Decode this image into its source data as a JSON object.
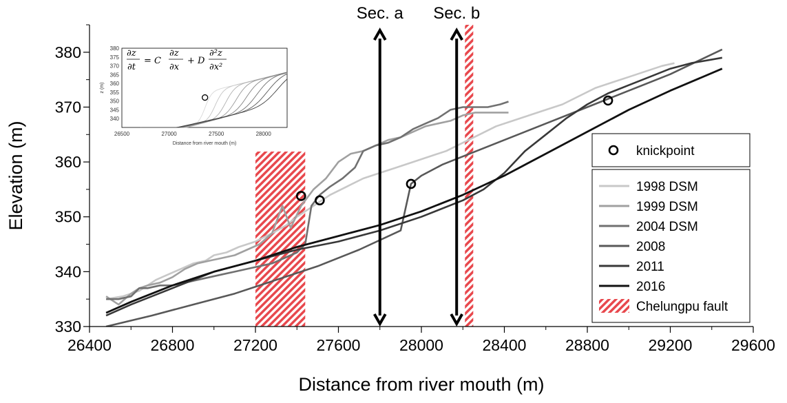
{
  "chart_data": {
    "type": "line",
    "xlabel": "Distance from river mouth (m)",
    "ylabel": "Elevation (m)",
    "xlim": [
      26400,
      29600
    ],
    "ylim": [
      330,
      385
    ],
    "x_ticks": [
      26400,
      26800,
      27200,
      27600,
      28000,
      28400,
      28800,
      29200,
      29600
    ],
    "x_tick_labels": [
      "26400",
      "26800",
      "27200",
      "27600",
      "28000",
      "28400",
      "28800",
      "29200",
      "29600"
    ],
    "y_ticks": [
      330,
      340,
      350,
      360,
      370,
      380
    ],
    "y_tick_labels": [
      "330",
      "340",
      "350",
      "360",
      "370",
      "380"
    ],
    "series": [
      {
        "name": "1998 DSM",
        "color": "#c8c8c8",
        "x": [
          26480,
          26560,
          26600,
          26640,
          26680,
          26720,
          26780,
          26840,
          26900,
          26960,
          27000,
          27060,
          27120,
          27200,
          27280,
          27350,
          27400,
          27480,
          27560,
          27640,
          27720,
          27800,
          27880,
          27960,
          28040,
          28120,
          28200,
          28280,
          28360,
          28440,
          28520,
          28600,
          28680,
          28760,
          28840,
          28920,
          29000,
          29080,
          29160,
          29220
        ],
        "y": [
          335,
          335.5,
          336,
          336.5,
          337.5,
          338.5,
          339.5,
          340.5,
          341.5,
          342,
          343,
          343.5,
          344.5,
          345.5,
          347,
          348.5,
          350,
          352,
          354,
          355.5,
          357,
          358,
          359,
          360,
          361,
          362,
          363.5,
          365,
          366.5,
          367.5,
          368.5,
          369.5,
          370.5,
          372,
          373.5,
          374.5,
          375.5,
          376.5,
          377.5,
          378
        ]
      },
      {
        "name": "1999 DSM",
        "color": "#a0a0a0",
        "x": [
          26480,
          26540,
          26600,
          26640,
          26680,
          26740,
          26800,
          26860,
          26920,
          26980,
          27040,
          27100,
          27160,
          27220,
          27280,
          27330,
          27370,
          27420,
          27480,
          27540,
          27600,
          27660,
          27720,
          27780,
          27840,
          27900,
          27960,
          28020,
          28080,
          28140,
          28200,
          28260,
          28320,
          28360,
          28420
        ],
        "y": [
          335.5,
          334,
          336,
          337,
          337.5,
          338,
          339,
          340.5,
          341.5,
          342,
          342.5,
          343,
          344,
          345,
          347,
          352,
          348,
          352,
          355,
          357,
          360,
          361.5,
          362,
          363,
          364,
          364.5,
          365.5,
          366.5,
          367,
          367.5,
          368.5,
          369,
          369,
          369,
          369
        ]
      },
      {
        "name": "2004 DSM",
        "color": "#707070",
        "x": [
          26480,
          26540,
          26600,
          26640,
          26680,
          26740,
          26800,
          26860,
          26920,
          26980,
          27040,
          27100,
          27160,
          27220,
          27280,
          27340,
          27400,
          27440,
          27470,
          27510,
          27560,
          27620,
          27680,
          27720,
          27780,
          27840,
          27900,
          27960,
          28020,
          28080,
          28140,
          28200,
          28260,
          28320,
          28380,
          28420
        ],
        "y": [
          335,
          335,
          335.5,
          337,
          337,
          337.5,
          337.5,
          338,
          338.5,
          339,
          339.5,
          340,
          340.5,
          341,
          341.5,
          342.5,
          343.5,
          345,
          352,
          354,
          355.5,
          357,
          359,
          362,
          363,
          363.5,
          364.5,
          366,
          367,
          368,
          369.5,
          370,
          370,
          370,
          370.5,
          371
        ]
      },
      {
        "name": "2008",
        "color": "#585858",
        "x": [
          26480,
          26700,
          26900,
          27100,
          27300,
          27500,
          27700,
          27900,
          27950,
          28000,
          28100,
          28200,
          28400,
          28600,
          28800,
          29000,
          29200,
          29450
        ],
        "y": [
          330,
          332,
          334,
          336,
          338.5,
          341,
          344,
          347.5,
          356,
          357.5,
          359.5,
          361,
          364,
          367,
          370,
          373,
          376,
          380.5
        ]
      },
      {
        "name": "2011",
        "color": "#383838",
        "x": [
          26480,
          26600,
          26800,
          27000,
          27200,
          27400,
          27600,
          27800,
          28000,
          28200,
          28300,
          28400,
          28500,
          28600,
          28700,
          28800,
          28900,
          29000,
          29100,
          29200,
          29300,
          29450
        ],
        "y": [
          332,
          334,
          337,
          340,
          342,
          344,
          345.5,
          347.5,
          350,
          353,
          355,
          358,
          362,
          365,
          368,
          370.5,
          372.5,
          374,
          375.5,
          377,
          378,
          379
        ]
      },
      {
        "name": "2016",
        "color": "#111111",
        "x": [
          26480,
          26600,
          26800,
          27000,
          27200,
          27400,
          27600,
          27800,
          28000,
          28200,
          28400,
          28600,
          28800,
          29000,
          29200,
          29450
        ],
        "y": [
          332.5,
          334.5,
          337.5,
          340,
          342,
          344.5,
          346.5,
          348.5,
          351,
          354,
          357.5,
          361.5,
          365.5,
          369.5,
          373,
          377
        ]
      }
    ],
    "knickpoints": [
      {
        "x": 27420,
        "y": 353.8
      },
      {
        "x": 27510,
        "y": 353
      },
      {
        "x": 27950,
        "y": 356
      },
      {
        "x": 28900,
        "y": 371.2
      }
    ],
    "fault_bands": [
      {
        "x0": 27200,
        "x1": 27440
      },
      {
        "x0": 28210,
        "x1": 28250
      }
    ],
    "sections": [
      {
        "label": "Sec. a",
        "x": 27800
      },
      {
        "label": "Sec. b",
        "x": 28170
      }
    ],
    "legend": {
      "knickpoint_label": "knickpoint",
      "fault_label": "Chelungpu fault",
      "fault_color": "#e8484d",
      "placement": "right"
    },
    "inset": {
      "xlabel": "Distance from river mouth (m)",
      "ylabel": "z (m)",
      "xlim": [
        26500,
        28250
      ],
      "ylim": [
        335,
        380
      ],
      "x_ticks": [
        "26500",
        "27000",
        "27500",
        "28000"
      ],
      "y_ticks": [
        "340",
        "345",
        "350",
        "355",
        "360",
        "365",
        "370",
        "375",
        "380"
      ],
      "equation_parts": [
        "∂z",
        "∂t",
        "= C",
        "∂z",
        "∂x",
        "+ D",
        "∂²z",
        "∂x²"
      ]
    }
  }
}
